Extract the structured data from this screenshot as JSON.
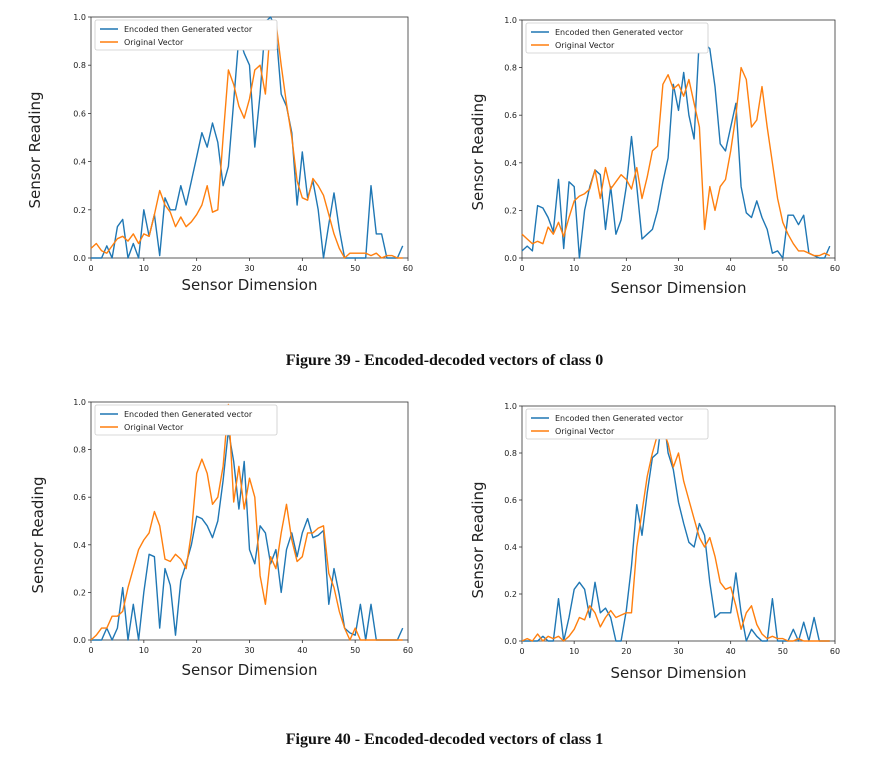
{
  "captions": {
    "fig39": "Figure 39 - Encoded-decoded vectors of class 0",
    "fig40": "Figure 40 - Encoded-decoded vectors of class 1"
  },
  "colors": {
    "encoded": "#1f77b4",
    "original": "#ff7f0e"
  },
  "chart_data": [
    {
      "type": "line",
      "xlabel": "Sensor Dimension",
      "ylabel": "Sensor Reading",
      "xlim": [
        0,
        60
      ],
      "ylim": [
        0,
        1
      ],
      "xticks": [
        0,
        10,
        20,
        30,
        40,
        50,
        60
      ],
      "yticks": [
        0.0,
        0.2,
        0.4,
        0.6,
        0.8,
        1.0
      ],
      "legend": "top-left",
      "series": [
        {
          "name": "Encoded then Generated vector",
          "values": [
            0.0,
            0.0,
            0.0,
            0.05,
            0.0,
            0.13,
            0.16,
            0.0,
            0.06,
            0.0,
            0.2,
            0.09,
            0.18,
            0.01,
            0.25,
            0.2,
            0.2,
            0.3,
            0.22,
            0.32,
            0.42,
            0.52,
            0.46,
            0.56,
            0.48,
            0.3,
            0.38,
            0.65,
            0.92,
            0.85,
            0.8,
            0.46,
            0.68,
            0.98,
            1.0,
            0.95,
            0.68,
            0.63,
            0.52,
            0.22,
            0.44,
            0.25,
            0.32,
            0.2,
            0.0,
            0.14,
            0.27,
            0.12,
            0.0,
            0.0,
            0.0,
            0.0,
            0.0,
            0.3,
            0.1,
            0.1,
            0.0,
            0.0,
            0.0,
            0.05
          ]
        },
        {
          "name": "Original Vector",
          "values": [
            0.04,
            0.06,
            0.03,
            0.02,
            0.05,
            0.08,
            0.09,
            0.07,
            0.1,
            0.06,
            0.1,
            0.09,
            0.18,
            0.28,
            0.22,
            0.19,
            0.13,
            0.17,
            0.13,
            0.15,
            0.18,
            0.22,
            0.3,
            0.19,
            0.2,
            0.5,
            0.78,
            0.72,
            0.63,
            0.58,
            0.66,
            0.78,
            0.8,
            0.68,
            0.97,
            0.98,
            0.8,
            0.64,
            0.5,
            0.32,
            0.25,
            0.24,
            0.33,
            0.3,
            0.26,
            0.18,
            0.1,
            0.04,
            0.0,
            0.02,
            0.02,
            0.02,
            0.02,
            0.01,
            0.02,
            0.0,
            0.01,
            0.01,
            0.0,
            0.0
          ]
        }
      ]
    },
    {
      "type": "line",
      "xlabel": "Sensor Dimension",
      "ylabel": "Sensor Reading",
      "xlim": [
        0,
        60
      ],
      "ylim": [
        0,
        1
      ],
      "xticks": [
        0,
        10,
        20,
        30,
        40,
        50,
        60
      ],
      "yticks": [
        0.0,
        0.2,
        0.4,
        0.6,
        0.8,
        1.0
      ],
      "legend": "top-left",
      "series": [
        {
          "name": "Encoded then Generated vector",
          "values": [
            0.03,
            0.05,
            0.03,
            0.22,
            0.21,
            0.17,
            0.11,
            0.33,
            0.04,
            0.32,
            0.3,
            0.0,
            0.2,
            0.3,
            0.37,
            0.35,
            0.12,
            0.3,
            0.1,
            0.16,
            0.3,
            0.51,
            0.3,
            0.08,
            0.1,
            0.12,
            0.2,
            0.32,
            0.42,
            0.73,
            0.62,
            0.78,
            0.6,
            0.5,
            0.93,
            0.9,
            0.88,
            0.72,
            0.48,
            0.45,
            0.55,
            0.65,
            0.3,
            0.19,
            0.17,
            0.24,
            0.17,
            0.12,
            0.02,
            0.03,
            0.0,
            0.18,
            0.18,
            0.14,
            0.18,
            0.02,
            0.01,
            0.0,
            0.0,
            0.05
          ]
        },
        {
          "name": "Original Vector",
          "values": [
            0.1,
            0.08,
            0.06,
            0.07,
            0.06,
            0.13,
            0.1,
            0.15,
            0.09,
            0.17,
            0.24,
            0.26,
            0.27,
            0.29,
            0.37,
            0.25,
            0.38,
            0.29,
            0.32,
            0.35,
            0.33,
            0.29,
            0.38,
            0.25,
            0.34,
            0.45,
            0.47,
            0.73,
            0.77,
            0.71,
            0.73,
            0.68,
            0.75,
            0.65,
            0.55,
            0.12,
            0.3,
            0.2,
            0.3,
            0.33,
            0.45,
            0.6,
            0.8,
            0.75,
            0.55,
            0.58,
            0.72,
            0.55,
            0.4,
            0.25,
            0.15,
            0.1,
            0.06,
            0.03,
            0.03,
            0.02,
            0.01,
            0.01,
            0.02,
            0.01
          ]
        }
      ]
    },
    {
      "type": "line",
      "xlabel": "Sensor Dimension",
      "ylabel": "Sensor Reading",
      "xlim": [
        0,
        60
      ],
      "ylim": [
        0,
        1
      ],
      "xticks": [
        0,
        10,
        20,
        30,
        40,
        50,
        60
      ],
      "yticks": [
        0.0,
        0.2,
        0.4,
        0.6,
        0.8,
        1.0
      ],
      "legend": "top-left",
      "series": [
        {
          "name": "Encoded then Generated vector",
          "values": [
            0.0,
            0.0,
            0.0,
            0.05,
            0.0,
            0.05,
            0.22,
            0.0,
            0.15,
            0.0,
            0.2,
            0.36,
            0.35,
            0.05,
            0.3,
            0.23,
            0.02,
            0.25,
            0.32,
            0.4,
            0.52,
            0.51,
            0.48,
            0.43,
            0.5,
            0.67,
            0.88,
            0.75,
            0.55,
            0.75,
            0.38,
            0.32,
            0.48,
            0.45,
            0.32,
            0.38,
            0.2,
            0.38,
            0.45,
            0.35,
            0.45,
            0.51,
            0.43,
            0.44,
            0.46,
            0.15,
            0.3,
            0.19,
            0.05,
            0.03,
            0.02,
            0.15,
            0.0,
            0.15,
            0.0,
            0.0,
            0.0,
            0.0,
            0.0,
            0.05
          ]
        },
        {
          "name": "Original Vector",
          "values": [
            0.0,
            0.02,
            0.05,
            0.05,
            0.1,
            0.1,
            0.12,
            0.22,
            0.3,
            0.38,
            0.42,
            0.45,
            0.54,
            0.48,
            0.34,
            0.33,
            0.36,
            0.34,
            0.3,
            0.45,
            0.7,
            0.76,
            0.7,
            0.57,
            0.6,
            0.73,
            0.99,
            0.58,
            0.73,
            0.55,
            0.68,
            0.6,
            0.27,
            0.15,
            0.35,
            0.3,
            0.45,
            0.57,
            0.42,
            0.33,
            0.35,
            0.45,
            0.45,
            0.47,
            0.48,
            0.28,
            0.22,
            0.12,
            0.05,
            0.0,
            0.05,
            0.0,
            0.0,
            0.0,
            0.0,
            0.0,
            0.0,
            0.0,
            0.0,
            0.0
          ]
        }
      ]
    },
    {
      "type": "line",
      "xlabel": "Sensor Dimension",
      "ylabel": "Sensor Reading",
      "xlim": [
        0,
        60
      ],
      "ylim": [
        0,
        1
      ],
      "xticks": [
        0,
        10,
        20,
        30,
        40,
        50,
        60
      ],
      "yticks": [
        0.0,
        0.2,
        0.4,
        0.6,
        0.8,
        1.0
      ],
      "legend": "top-left",
      "series": [
        {
          "name": "Encoded then Generated vector",
          "values": [
            0.0,
            0.0,
            0.0,
            0.0,
            0.02,
            0.0,
            0.0,
            0.18,
            0.0,
            0.1,
            0.22,
            0.25,
            0.22,
            0.1,
            0.25,
            0.12,
            0.14,
            0.1,
            0.0,
            0.0,
            0.13,
            0.32,
            0.58,
            0.45,
            0.63,
            0.78,
            0.8,
            0.98,
            0.8,
            0.73,
            0.59,
            0.5,
            0.42,
            0.4,
            0.5,
            0.45,
            0.25,
            0.1,
            0.12,
            0.12,
            0.12,
            0.29,
            0.12,
            0.0,
            0.05,
            0.02,
            0.0,
            0.0,
            0.18,
            0.0,
            0.0,
            0.0,
            0.05,
            0.0,
            0.08,
            0.0,
            0.1,
            0.0,
            0.0,
            0.0
          ]
        },
        {
          "name": "Original Vector",
          "values": [
            0.0,
            0.01,
            0.0,
            0.03,
            0.0,
            0.02,
            0.01,
            0.02,
            0.0,
            0.02,
            0.05,
            0.1,
            0.09,
            0.15,
            0.12,
            0.06,
            0.1,
            0.13,
            0.1,
            0.11,
            0.12,
            0.12,
            0.4,
            0.55,
            0.7,
            0.8,
            0.88,
            0.9,
            0.84,
            0.74,
            0.8,
            0.68,
            0.6,
            0.52,
            0.44,
            0.4,
            0.44,
            0.36,
            0.25,
            0.22,
            0.23,
            0.15,
            0.05,
            0.12,
            0.15,
            0.07,
            0.03,
            0.01,
            0.02,
            0.01,
            0.01,
            0.0,
            0.0,
            0.01,
            0.0,
            0.0,
            0.0,
            0.0,
            0.0,
            0.0
          ]
        }
      ]
    }
  ]
}
